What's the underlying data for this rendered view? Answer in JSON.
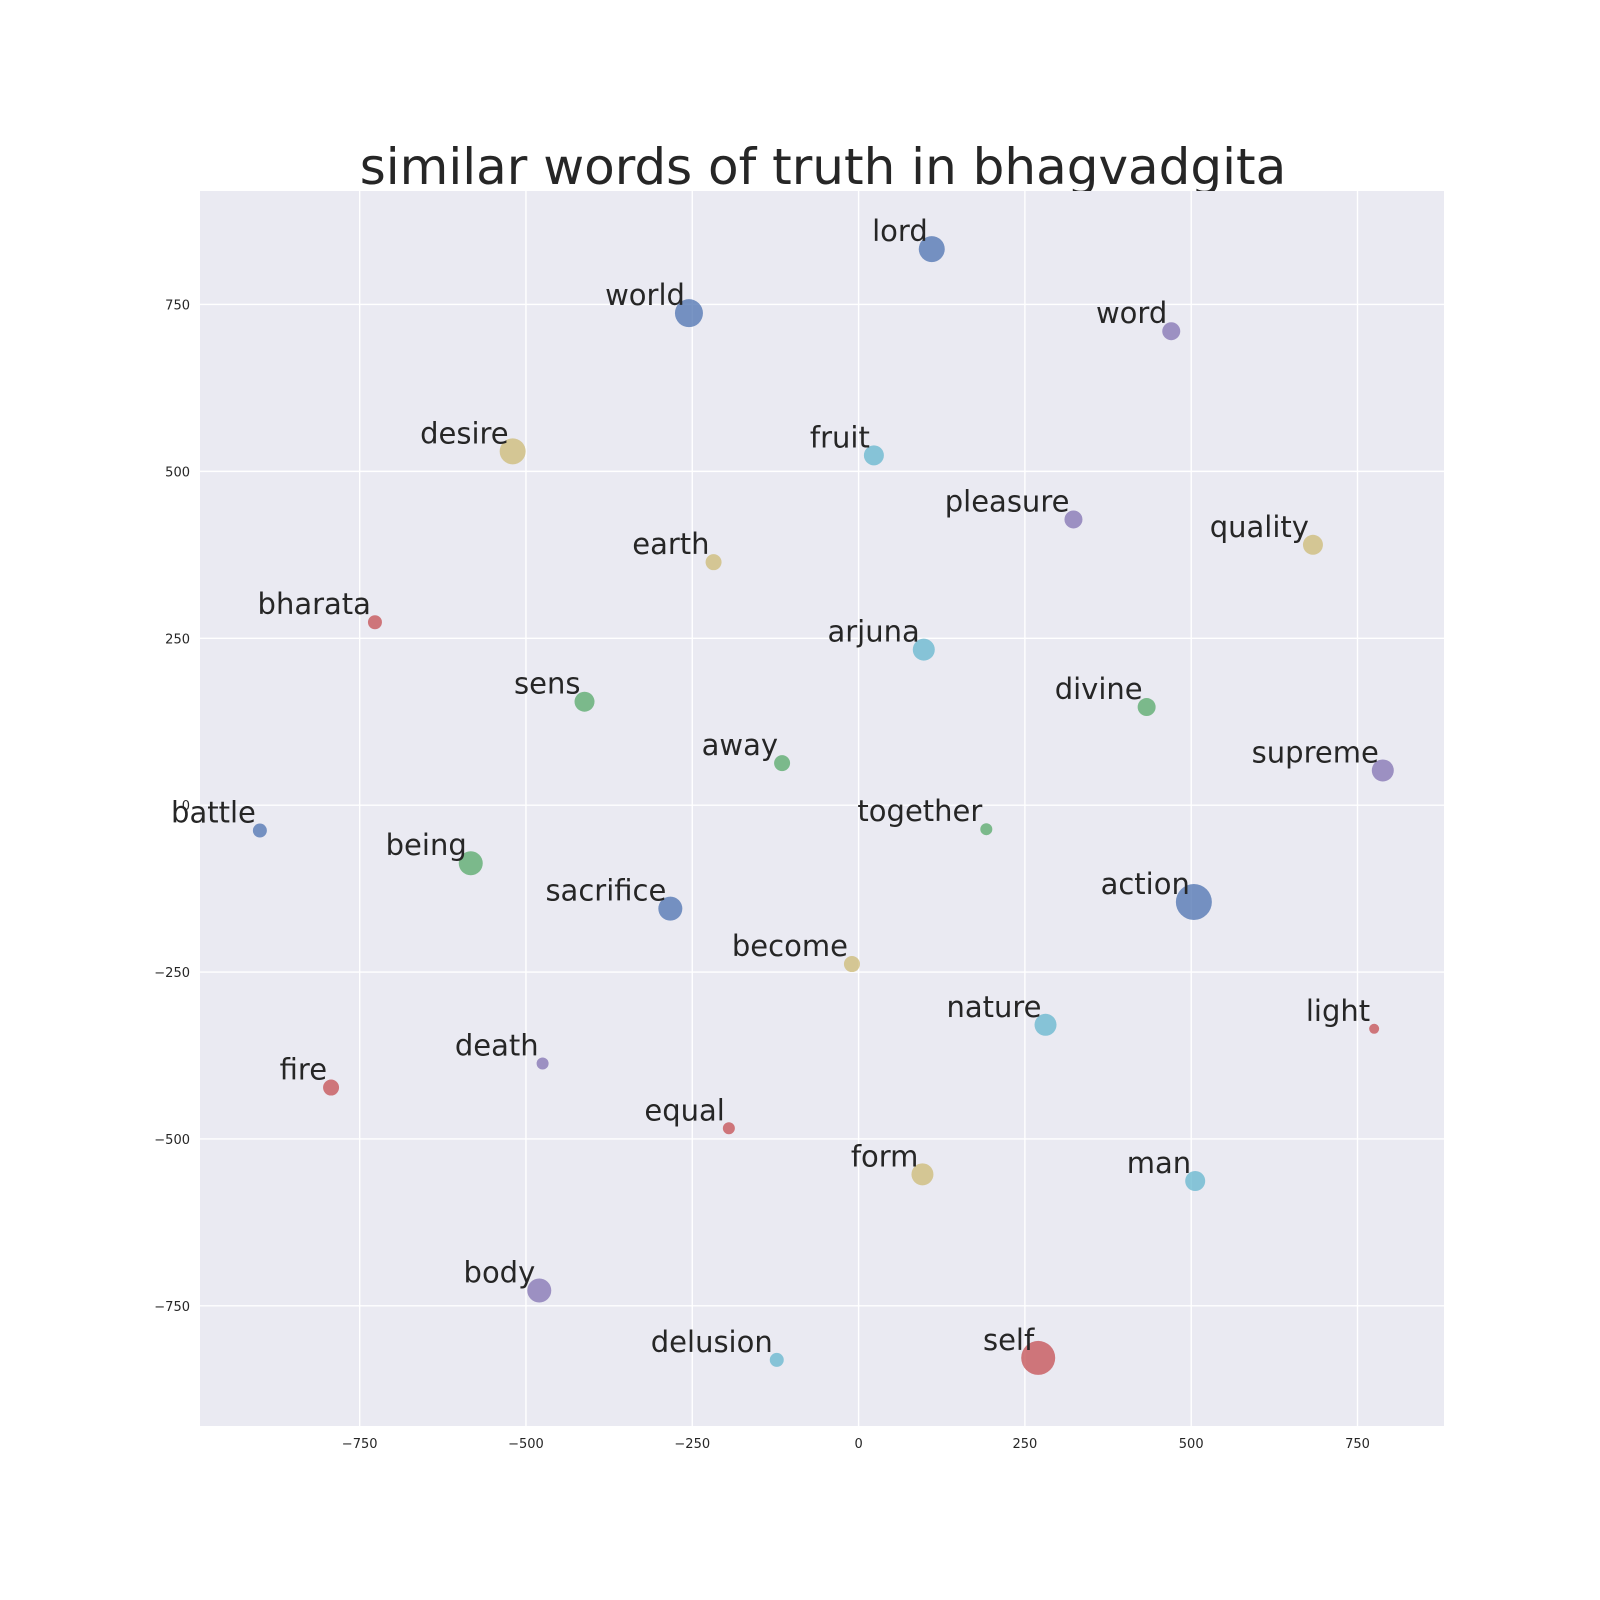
{
  "chart_data": {
    "type": "scatter",
    "title": "similar words of truth in bhagvadgita",
    "xlabel": "",
    "ylabel": "",
    "xlim": [
      -990,
      880
    ],
    "ylim": [
      -930,
      920
    ],
    "x_ticks": [
      -750,
      -500,
      -250,
      0,
      250,
      500,
      750
    ],
    "y_ticks": [
      -750,
      -500,
      -250,
      0,
      250,
      500,
      750
    ],
    "x_tick_labels": [
      "−750",
      "−500",
      "−250",
      "0",
      "250",
      "500",
      "750"
    ],
    "y_tick_labels": [
      "−750",
      "−500",
      "−250",
      "0",
      "250",
      "500",
      "750"
    ],
    "grid": true,
    "background": "#eaeaf2",
    "points": [
      {
        "label": "lord",
        "x": 110,
        "y": 833,
        "size": 13,
        "color": "#4c72b0"
      },
      {
        "label": "world",
        "x": -255,
        "y": 737,
        "size": 14,
        "color": "#4c72b0"
      },
      {
        "label": "word",
        "x": 470,
        "y": 710,
        "size": 9,
        "color": "#8172b2"
      },
      {
        "label": "desire",
        "x": -520,
        "y": 530,
        "size": 13,
        "color": "#ccb974"
      },
      {
        "label": "fruit",
        "x": 23,
        "y": 524,
        "size": 10,
        "color": "#64b5cd"
      },
      {
        "label": "pleasure",
        "x": 323,
        "y": 428,
        "size": 9,
        "color": "#8172b2"
      },
      {
        "label": "quality",
        "x": 683,
        "y": 390,
        "size": 10,
        "color": "#ccb974"
      },
      {
        "label": "earth",
        "x": -218,
        "y": 364,
        "size": 8,
        "color": "#ccb974"
      },
      {
        "label": "bharata",
        "x": -727,
        "y": 274,
        "size": 7,
        "color": "#c44e52"
      },
      {
        "label": "arjuna",
        "x": 98,
        "y": 233,
        "size": 11,
        "color": "#64b5cd"
      },
      {
        "label": "sens",
        "x": -412,
        "y": 155,
        "size": 10,
        "color": "#55a868"
      },
      {
        "label": "divine",
        "x": 433,
        "y": 147,
        "size": 9,
        "color": "#55a868"
      },
      {
        "label": "away",
        "x": -115,
        "y": 63,
        "size": 8,
        "color": "#55a868"
      },
      {
        "label": "supreme",
        "x": 788,
        "y": 52,
        "size": 11,
        "color": "#8172b2"
      },
      {
        "label": "battle",
        "x": -900,
        "y": -38,
        "size": 7,
        "color": "#4c72b0"
      },
      {
        "label": "together",
        "x": 192,
        "y": -36,
        "size": 6,
        "color": "#55a868"
      },
      {
        "label": "being",
        "x": -583,
        "y": -87,
        "size": 12,
        "color": "#55a868"
      },
      {
        "label": "action",
        "x": 504,
        "y": -145,
        "size": 18,
        "color": "#4c72b0"
      },
      {
        "label": "sacrifice",
        "x": -283,
        "y": -155,
        "size": 12,
        "color": "#4c72b0"
      },
      {
        "label": "become",
        "x": -10,
        "y": -238,
        "size": 8,
        "color": "#ccb974"
      },
      {
        "label": "nature",
        "x": 281,
        "y": -329,
        "size": 11,
        "color": "#64b5cd"
      },
      {
        "label": "light",
        "x": 775,
        "y": -335,
        "size": 5,
        "color": "#c44e52"
      },
      {
        "label": "death",
        "x": -475,
        "y": -387,
        "size": 6,
        "color": "#8172b2"
      },
      {
        "label": "fire",
        "x": -793,
        "y": -423,
        "size": 8,
        "color": "#c44e52"
      },
      {
        "label": "equal",
        "x": -195,
        "y": -484,
        "size": 6,
        "color": "#c44e52"
      },
      {
        "label": "form",
        "x": 96,
        "y": -553,
        "size": 11,
        "color": "#ccb974"
      },
      {
        "label": "man",
        "x": 506,
        "y": -563,
        "size": 10,
        "color": "#64b5cd"
      },
      {
        "label": "body",
        "x": -480,
        "y": -727,
        "size": 12,
        "color": "#8172b2"
      },
      {
        "label": "delusion",
        "x": -123,
        "y": -831,
        "size": 7,
        "color": "#64b5cd"
      },
      {
        "label": "self",
        "x": 270,
        "y": -828,
        "size": 17,
        "color": "#c44e52"
      }
    ]
  }
}
